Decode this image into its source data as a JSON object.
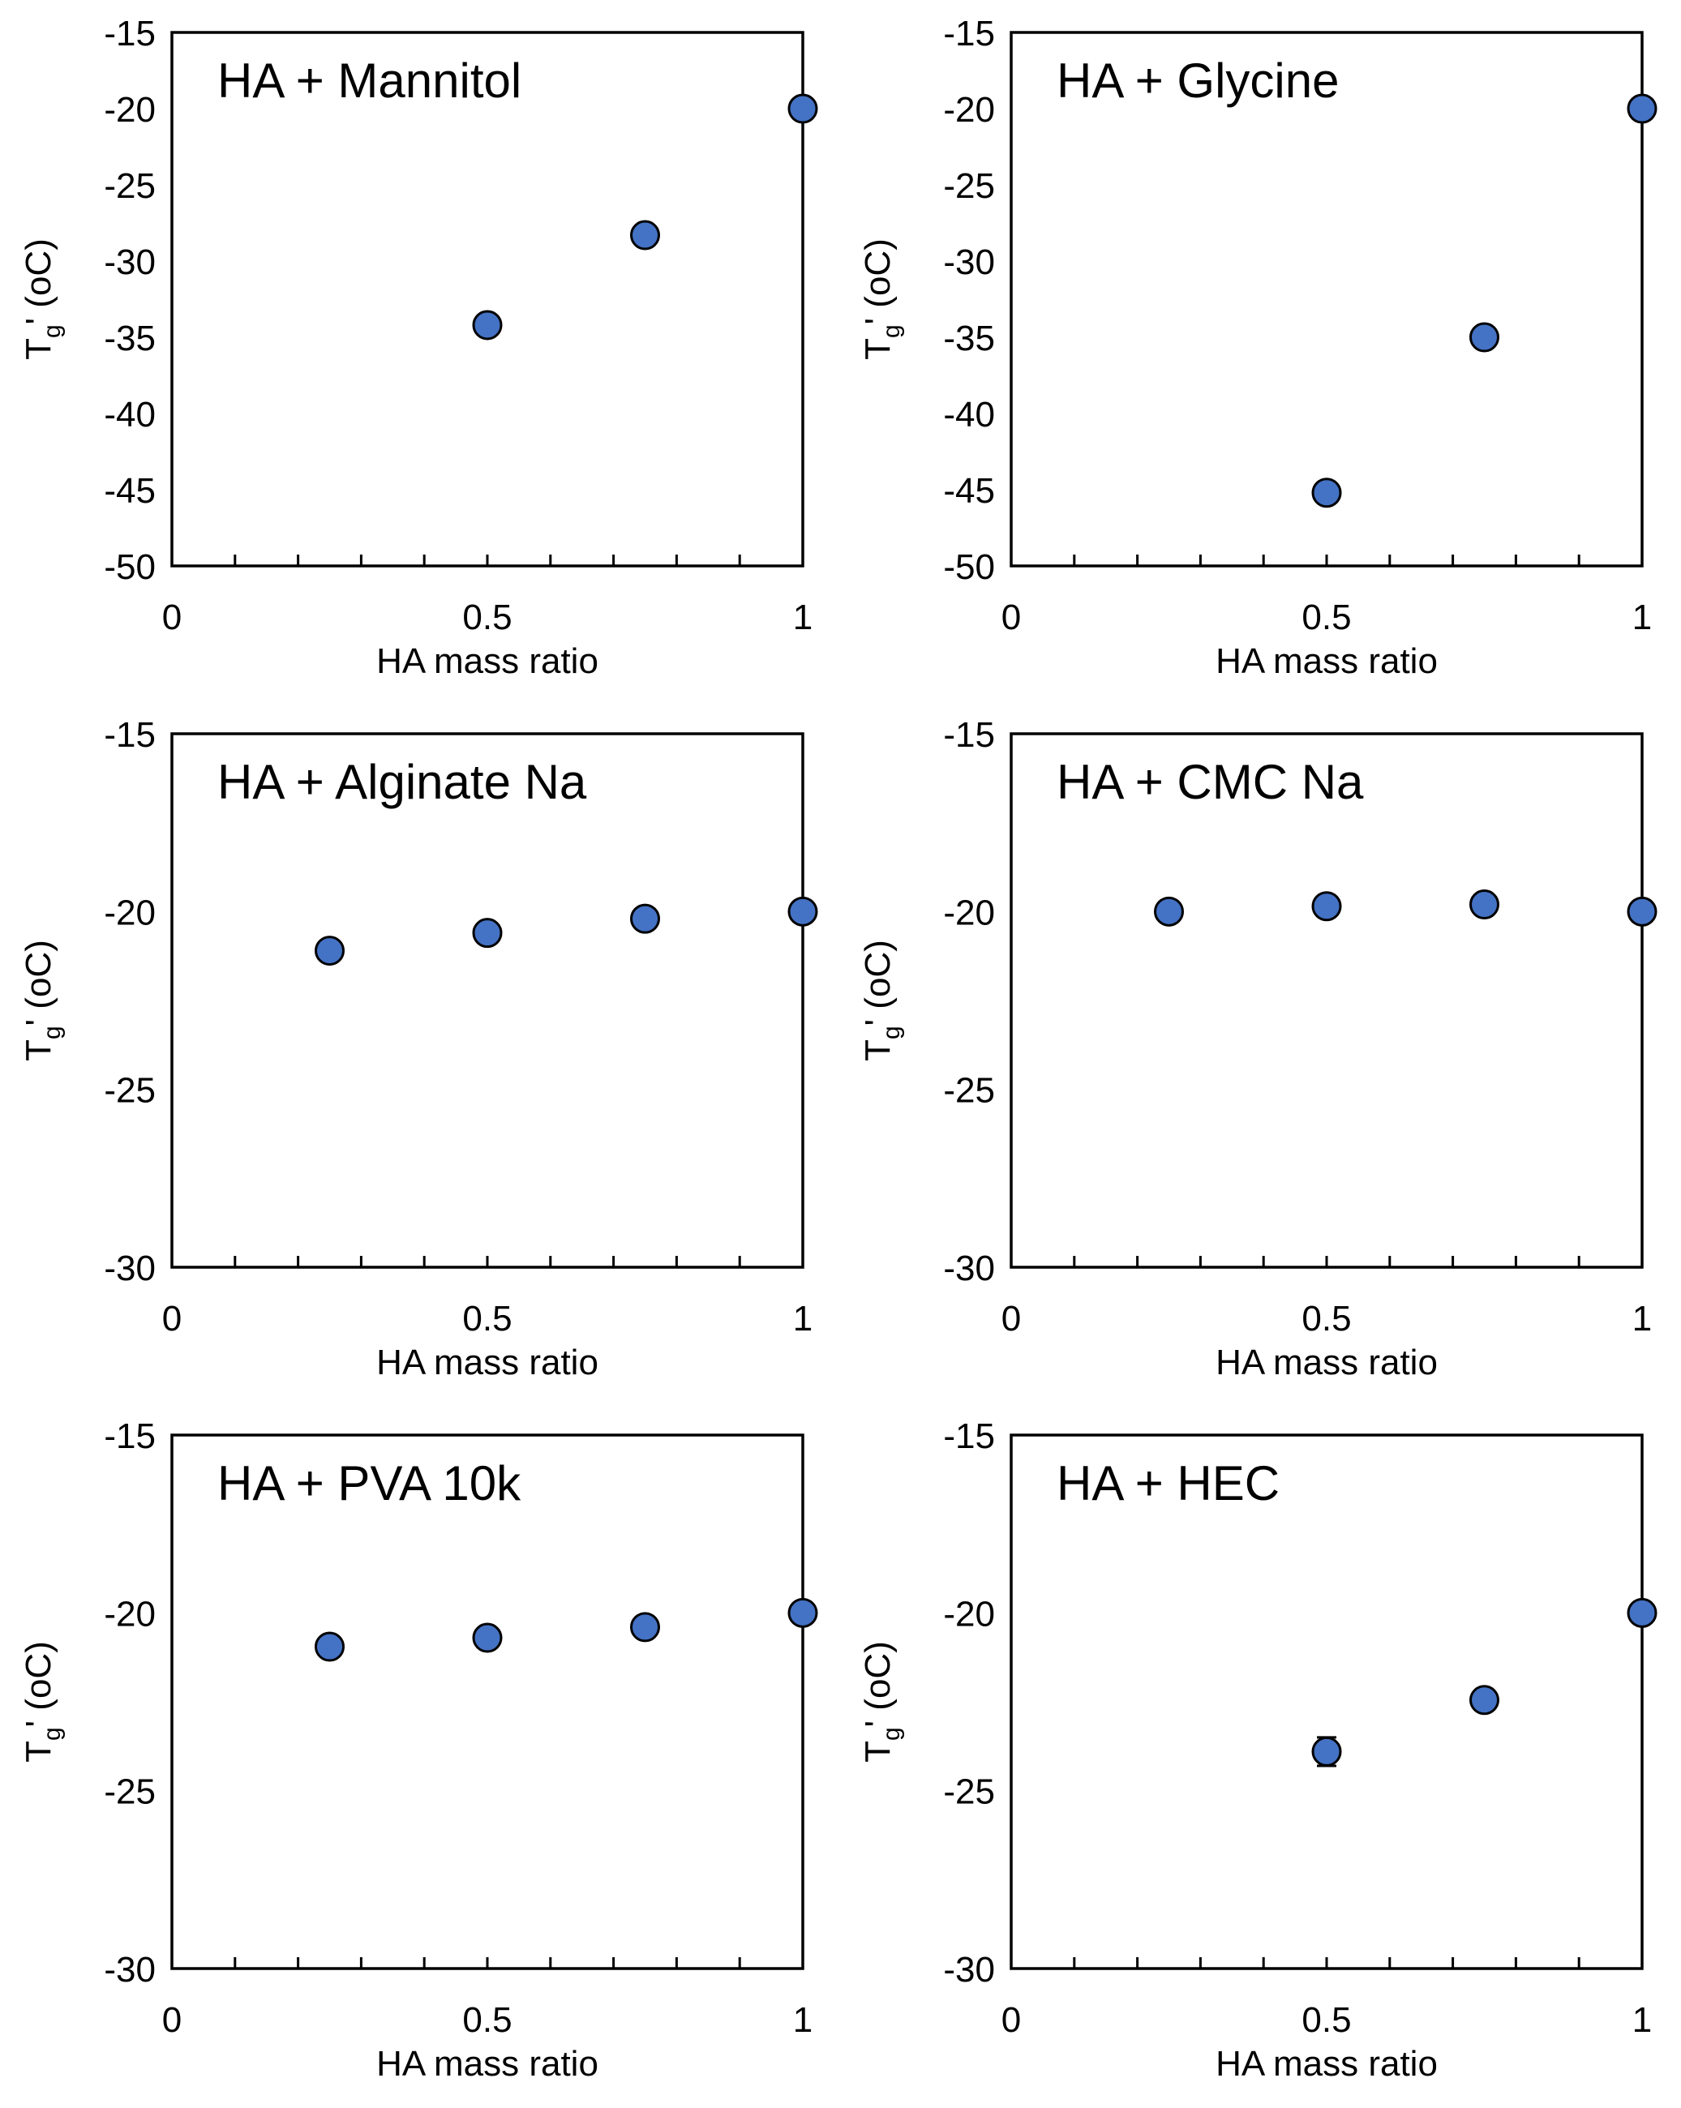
{
  "chart_data": [
    {
      "type": "scatter",
      "title": "HA + Mannitol",
      "xlabel": "HA mass ratio",
      "ylabel": "Tg' (oC)",
      "xlim": [
        0,
        1
      ],
      "ylim": [
        -50,
        -15
      ],
      "xticks": [
        "0",
        "0.5",
        "1"
      ],
      "yticks": [
        "-15",
        "-20",
        "-25",
        "-30",
        "-35",
        "-40",
        "-45",
        "-50"
      ],
      "series": [
        {
          "x": [
            0.5,
            0.75,
            1.0
          ],
          "y": [
            -34.2,
            -28.3,
            -20.0
          ],
          "err": [
            0,
            0,
            0
          ]
        }
      ]
    },
    {
      "type": "scatter",
      "title": "HA + Glycine",
      "xlabel": "HA mass ratio",
      "ylabel": "Tg' (oC)",
      "xlim": [
        0,
        1
      ],
      "ylim": [
        -50,
        -15
      ],
      "xticks": [
        "0",
        "0.5",
        "1"
      ],
      "yticks": [
        "-15",
        "-20",
        "-25",
        "-30",
        "-35",
        "-40",
        "-45",
        "-50"
      ],
      "series": [
        {
          "x": [
            0.5,
            0.75,
            1.0
          ],
          "y": [
            -45.2,
            -35.0,
            -20.0
          ],
          "err": [
            0,
            0,
            0
          ]
        }
      ]
    },
    {
      "type": "scatter",
      "title": "HA + Alginate Na",
      "xlabel": "HA mass ratio",
      "ylabel": "Tg' (oC)",
      "xlim": [
        0,
        1
      ],
      "ylim": [
        -30,
        -15
      ],
      "xticks": [
        "0",
        "0.5",
        "1"
      ],
      "yticks": [
        "-15",
        "-20",
        "-25",
        "-30"
      ],
      "series": [
        {
          "x": [
            0.25,
            0.5,
            0.75,
            1.0
          ],
          "y": [
            -21.1,
            -20.6,
            -20.2,
            -20.0
          ],
          "err": [
            0,
            0,
            0,
            0
          ]
        }
      ]
    },
    {
      "type": "scatter",
      "title": "HA + CMC Na",
      "xlabel": "HA mass ratio",
      "ylabel": "Tg' (oC)",
      "xlim": [
        0,
        1
      ],
      "ylim": [
        -30,
        -15
      ],
      "xticks": [
        "0",
        "0.5",
        "1"
      ],
      "yticks": [
        "-15",
        "-20",
        "-25",
        "-30"
      ],
      "series": [
        {
          "x": [
            0.25,
            0.5,
            0.75,
            1.0
          ],
          "y": [
            -20.0,
            -19.85,
            -19.8,
            -20.0
          ],
          "err": [
            0,
            0,
            0,
            0
          ]
        }
      ]
    },
    {
      "type": "scatter",
      "title": "HA + PVA 10k",
      "xlabel": "HA mass ratio",
      "ylabel": "Tg' (oC)",
      "xlim": [
        0,
        1
      ],
      "ylim": [
        -30,
        -15
      ],
      "xticks": [
        "0",
        "0.5",
        "1"
      ],
      "yticks": [
        "-15",
        "-20",
        "-25",
        "-30"
      ],
      "series": [
        {
          "x": [
            0.25,
            0.5,
            0.75,
            1.0
          ],
          "y": [
            -20.95,
            -20.7,
            -20.4,
            -20.0
          ],
          "err": [
            0,
            0,
            0,
            0
          ]
        }
      ]
    },
    {
      "type": "scatter",
      "title": "HA + HEC",
      "xlabel": "HA mass ratio",
      "ylabel": "Tg' (oC)",
      "xlim": [
        0,
        1
      ],
      "ylim": [
        -30,
        -15
      ],
      "xticks": [
        "0",
        "0.5",
        "1"
      ],
      "yticks": [
        "-15",
        "-20",
        "-25",
        "-30"
      ],
      "series": [
        {
          "x": [
            0.5,
            0.75,
            1.0
          ],
          "y": [
            -23.9,
            -22.45,
            -20.0
          ],
          "err": [
            0.4,
            0,
            0
          ]
        }
      ]
    }
  ],
  "colors": {
    "marker_fill": "#4472C4",
    "marker_edge": "#000000",
    "axis": "#000000"
  },
  "labels": {
    "ylabel_main": "T",
    "ylabel_sub": "g",
    "ylabel_rest": "' (oC)"
  }
}
